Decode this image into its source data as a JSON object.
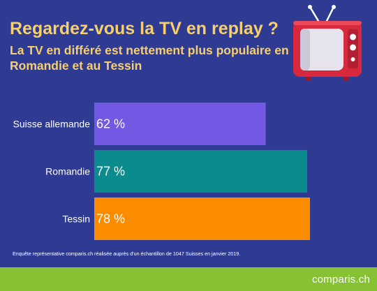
{
  "title": "Regardez-vous la TV en replay ?",
  "subtitle": "La TV en différé est nettement plus populaire en Romandie et au Tessin",
  "note": "Enquête représentative comparis.ch réalisée auprès d'un échantillon de 1047 Suisses en janvier 2019.",
  "footer": {
    "logo": "comparis.ch",
    "background": "#87c234"
  },
  "icons": {
    "tv": "retro-tv-icon"
  },
  "colors": {
    "background": "#2f3a92",
    "title": "#f6cf6e"
  },
  "chart_data": {
    "type": "bar",
    "orientation": "horizontal",
    "categories": [
      "Suisse allemande",
      "Romandie",
      "Tessin"
    ],
    "values": [
      62,
      77,
      78
    ],
    "value_labels": [
      "62 %",
      "77 %",
      "78 %"
    ],
    "unit": "%",
    "colors": [
      "#7258e3",
      "#0b8b8e",
      "#fb8c00"
    ],
    "xlim": [
      0,
      78
    ],
    "grid": false,
    "legend": "none"
  }
}
